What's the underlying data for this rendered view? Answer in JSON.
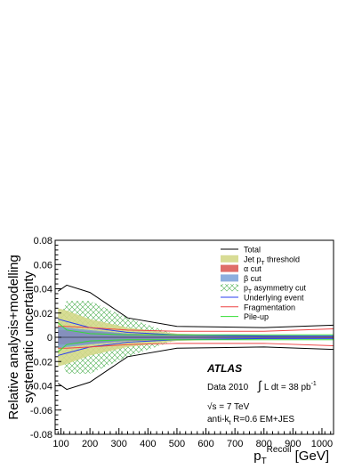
{
  "chart_data": {
    "type": "line",
    "ylabel_line1": "Relative analysis+modelling",
    "ylabel_line2": "systematic uncertainty",
    "xlabel_main": "p",
    "xlabel_sub": "T",
    "xlabel_sup": "Recoil",
    "xlabel_unit": " [GeV]",
    "xlim": [
      80,
      1040
    ],
    "ylim": [
      -0.08,
      0.08
    ],
    "xticks": [
      100,
      200,
      300,
      400,
      500,
      600,
      700,
      800,
      900,
      1000
    ],
    "yticks": [
      -0.08,
      -0.06,
      -0.04,
      -0.02,
      0,
      0.02,
      0.04,
      0.06,
      0.08
    ],
    "ytick_labels": [
      "-0.08",
      "-0.06",
      "-0.04",
      "-0.02",
      "0",
      "0.02",
      "0.04",
      "0.06",
      "0.08"
    ],
    "x": [
      90,
      120,
      200,
      330,
      500,
      800,
      1040
    ],
    "bands": [
      {
        "name": "p_T asymmetry cut",
        "kind": "asym",
        "color": "#4caf50",
        "upper": [
          0.013,
          0.03,
          0.03,
          0.016,
          0.002,
          0.001,
          0.001
        ]
      },
      {
        "name": "Jet p_T threshold",
        "kind": "jet",
        "color": "#d4d88a",
        "upper": [
          0.024,
          0.022,
          0.015,
          0.008,
          0.003,
          0.001,
          0.001
        ]
      },
      {
        "name": "α cut",
        "kind": "alpha",
        "color": "#d9534f",
        "upper": [
          0.006,
          0.006,
          0.005,
          0.003,
          0.002,
          0.0015,
          0.001
        ]
      },
      {
        "name": "β cut",
        "kind": "beta",
        "color": "#6f9ad6",
        "upper": [
          0.009,
          0.008,
          0.006,
          0.003,
          0.0015,
          0.001,
          0.0005
        ]
      }
    ],
    "lines": [
      {
        "name": "Total",
        "color": "#000000",
        "upper": [
          0.038,
          0.043,
          0.037,
          0.016,
          0.009,
          0.008,
          0.01
        ],
        "lower": [
          -0.038,
          -0.043,
          -0.037,
          -0.016,
          -0.009,
          -0.008,
          -0.01
        ]
      },
      {
        "name": "Underlying event",
        "color": "#2a3ff0",
        "upper": [
          0.015,
          0.013,
          0.008,
          0.004,
          0.002,
          0.001,
          0.001
        ],
        "lower": [
          -0.015,
          -0.013,
          -0.008,
          -0.004,
          -0.002,
          -0.001,
          -0.001
        ]
      },
      {
        "name": "Fragmentation",
        "color": "#ee4444",
        "upper": [
          0.009,
          0.009,
          0.008,
          0.006,
          0.005,
          0.005,
          0.007
        ],
        "lower": [
          -0.009,
          -0.009,
          -0.008,
          -0.006,
          -0.005,
          -0.005,
          -0.007
        ]
      },
      {
        "name": "Pile-up",
        "color": "#33dd33",
        "upper": [
          0.012,
          0.006,
          0.003,
          0.002,
          0.002,
          0.002,
          0.002
        ],
        "lower": [
          -0.012,
          -0.006,
          -0.003,
          -0.002,
          -0.002,
          -0.002,
          -0.002
        ]
      }
    ],
    "legend": {
      "placement": "top-right",
      "entries": [
        {
          "label": "Total",
          "kind": "line",
          "color": "#000000"
        },
        {
          "label": "Jet p",
          "sub": "T",
          "tail": " threshold",
          "kind": "jet",
          "color": "#d4d88a"
        },
        {
          "label": "α cut",
          "kind": "alpha",
          "color": "#d9534f"
        },
        {
          "label": "β cut",
          "kind": "beta",
          "color": "#6f9ad6"
        },
        {
          "label": "p",
          "sub": "T",
          "tail": " asymmetry cut",
          "kind": "asym",
          "color": "#4caf50"
        },
        {
          "label": "Underlying event",
          "kind": "line",
          "color": "#2a3ff0"
        },
        {
          "label": "Fragmentation",
          "kind": "line",
          "color": "#ee4444"
        },
        {
          "label": "Pile-up",
          "kind": "line",
          "color": "#33dd33"
        }
      ]
    },
    "annotations": {
      "experiment": "ATLAS",
      "data_label": "Data 2010",
      "lumi_integral": "∫",
      "lumi_text": "L dt = 38 pb",
      "lumi_sup": "-1",
      "energy_sqrt": "√",
      "energy_text": "s = 7 TeV",
      "algo_text": "anti-k",
      "algo_sub": "t",
      "algo_tail": " R=0.6  EM+JES"
    },
    "grid": false
  }
}
